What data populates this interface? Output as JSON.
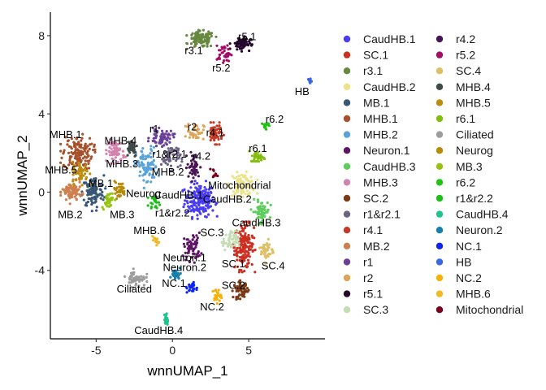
{
  "chart_data": {
    "type": "scatter",
    "xlabel": "wnnUMAP_1",
    "ylabel": "wnnUMAP_2",
    "xlim": [
      -8,
      10
    ],
    "ylim": [
      -7.5,
      9.2
    ],
    "xticks": [
      -5,
      0,
      5
    ],
    "yticks": [
      -4,
      0,
      4,
      8
    ],
    "xtick_labels": [
      "-5",
      "0",
      "5"
    ],
    "ytick_labels": [
      "-4",
      "0",
      "4",
      "8"
    ],
    "grid": false,
    "legend_position": "right",
    "series": [
      {
        "name": "CaudHB.1",
        "color": "#4a3df2",
        "center": [
          1.8,
          -0.4
        ],
        "spread": [
          0.7,
          0.6
        ],
        "count": 200
      },
      {
        "name": "SC.1",
        "color": "#cb2f22",
        "center": [
          4.7,
          -2.8
        ],
        "spread": [
          0.45,
          0.8
        ],
        "count": 160
      },
      {
        "name": "r3.1",
        "color": "#66883f",
        "center": [
          1.9,
          7.8
        ],
        "spread": [
          0.6,
          0.3
        ],
        "count": 110
      },
      {
        "name": "CaudHB.2",
        "color": "#ece286",
        "center": [
          4.6,
          0.4
        ],
        "spread": [
          0.6,
          0.4
        ],
        "count": 90
      },
      {
        "name": "MB.1",
        "color": "#385774",
        "center": [
          -5.2,
          0.0
        ],
        "spread": [
          0.5,
          0.6
        ],
        "count": 110
      },
      {
        "name": "MHB.1",
        "color": "#a7502a",
        "center": [
          -6.2,
          2.0
        ],
        "spread": [
          0.7,
          0.6
        ],
        "count": 140
      },
      {
        "name": "MHB.2",
        "color": "#5aa3d8",
        "center": [
          -1.7,
          1.3
        ],
        "spread": [
          0.5,
          0.7
        ],
        "count": 90
      },
      {
        "name": "Neuron.1",
        "color": "#5d1465",
        "center": [
          1.3,
          -2.8
        ],
        "spread": [
          0.4,
          0.5
        ],
        "count": 60
      },
      {
        "name": "CaudHB.3",
        "color": "#5dcd5c",
        "center": [
          5.8,
          -1.0
        ],
        "spread": [
          0.4,
          0.4
        ],
        "count": 60
      },
      {
        "name": "MHB.3",
        "color": "#d283ae",
        "center": [
          -3.7,
          2.1
        ],
        "spread": [
          0.4,
          0.4
        ],
        "count": 70
      },
      {
        "name": "SC.2",
        "color": "#7a3a16",
        "center": [
          4.5,
          -5.0
        ],
        "spread": [
          0.35,
          0.3
        ],
        "count": 60
      },
      {
        "name": "r1&r2.1",
        "color": "#6b6180",
        "center": [
          -0.1,
          1.8
        ],
        "spread": [
          0.45,
          0.45
        ],
        "count": 60
      },
      {
        "name": "r4.1",
        "color": "#c53a24",
        "center": [
          2.8,
          3.0
        ],
        "spread": [
          0.35,
          0.35
        ],
        "count": 60
      },
      {
        "name": "MB.2",
        "color": "#cd7f4f",
        "center": [
          -6.6,
          0.0
        ],
        "spread": [
          0.45,
          0.4
        ],
        "count": 80
      },
      {
        "name": "r1",
        "color": "#6a3f98",
        "center": [
          -0.7,
          2.8
        ],
        "spread": [
          0.55,
          0.3
        ],
        "count": 60
      },
      {
        "name": "r2",
        "color": "#dca65a",
        "center": [
          1.5,
          3.1
        ],
        "spread": [
          0.4,
          0.3
        ],
        "count": 40
      },
      {
        "name": "r5.1",
        "color": "#24082c",
        "center": [
          4.5,
          7.6
        ],
        "spread": [
          0.45,
          0.25
        ],
        "count": 70
      },
      {
        "name": "SC.3",
        "color": "#c5ddb2",
        "center": [
          3.8,
          -2.5
        ],
        "spread": [
          0.35,
          0.35
        ],
        "count": 50
      },
      {
        "name": "r4.2",
        "color": "#4a1554",
        "center": [
          1.4,
          1.3
        ],
        "spread": [
          0.3,
          0.5
        ],
        "count": 50
      },
      {
        "name": "r5.2",
        "color": "#a30d64",
        "center": [
          3.4,
          7.1
        ],
        "spread": [
          0.3,
          0.3
        ],
        "count": 40
      },
      {
        "name": "SC.4",
        "color": "#dfbf64",
        "center": [
          6.2,
          -3.0
        ],
        "spread": [
          0.3,
          0.4
        ],
        "count": 40
      },
      {
        "name": "MHB.4",
        "color": "#3e4b49",
        "center": [
          -2.7,
          2.3
        ],
        "spread": [
          0.3,
          0.35
        ],
        "count": 40
      },
      {
        "name": "MHB.5",
        "color": "#bc8b0f",
        "center": [
          -6.0,
          1.0
        ],
        "spread": [
          0.4,
          0.4
        ],
        "count": 60
      },
      {
        "name": "r6.1",
        "color": "#83bd0d",
        "center": [
          5.6,
          1.8
        ],
        "spread": [
          0.35,
          0.2
        ],
        "count": 35
      },
      {
        "name": "Ciliated",
        "color": "#9c9c9c",
        "center": [
          -2.4,
          -4.4
        ],
        "spread": [
          0.45,
          0.3
        ],
        "count": 50
      },
      {
        "name": "Neurog",
        "color": "#b98a07",
        "center": [
          -3.5,
          0.1
        ],
        "spread": [
          0.3,
          0.3
        ],
        "count": 35
      },
      {
        "name": "MB.3",
        "color": "#96c212",
        "center": [
          -4.2,
          -0.4
        ],
        "spread": [
          0.3,
          0.3
        ],
        "count": 35
      },
      {
        "name": "r6.2",
        "color": "#22c414",
        "center": [
          6.1,
          3.4
        ],
        "spread": [
          0.15,
          0.2
        ],
        "count": 18
      },
      {
        "name": "r1&r2.2",
        "color": "#1bbf17",
        "center": [
          -1.2,
          -0.5
        ],
        "spread": [
          0.25,
          0.2
        ],
        "count": 20
      },
      {
        "name": "CaudHB.4",
        "color": "#1fc38d",
        "center": [
          -0.4,
          -6.5
        ],
        "spread": [
          0.1,
          0.25
        ],
        "count": 20
      },
      {
        "name": "Neuron.2",
        "color": "#167fab",
        "center": [
          0.2,
          -4.2
        ],
        "spread": [
          0.25,
          0.2
        ],
        "count": 25
      },
      {
        "name": "NC.1",
        "color": "#0d26ef",
        "center": [
          1.3,
          -4.9
        ],
        "spread": [
          0.25,
          0.2
        ],
        "count": 25
      },
      {
        "name": "HB",
        "color": "#3968e0",
        "center": [
          9.0,
          5.7
        ],
        "spread": [
          0.08,
          0.1
        ],
        "count": 12
      },
      {
        "name": "NC.2",
        "color": "#f7b10b",
        "center": [
          2.9,
          -5.3
        ],
        "spread": [
          0.2,
          0.25
        ],
        "count": 25
      },
      {
        "name": "MHB.6",
        "color": "#f0b925",
        "center": [
          -1.1,
          -2.5
        ],
        "spread": [
          0.15,
          0.15
        ],
        "count": 12
      },
      {
        "name": "Mitochondrial",
        "color": "#7b001d",
        "center": [
          2.7,
          0.9
        ],
        "spread": [
          0.2,
          0.2
        ],
        "count": 12
      }
    ],
    "annotations": [
      {
        "text": "CaudHB.1",
        "x": 0.4,
        "y": -0.2
      },
      {
        "text": "SC.1",
        "x": 4.0,
        "y": -3.7
      },
      {
        "text": "r3.1",
        "x": 1.4,
        "y": 7.2
      },
      {
        "text": "CaudHB.2",
        "x": 3.6,
        "y": -0.4
      },
      {
        "text": "MB.1",
        "x": -4.7,
        "y": 0.4
      },
      {
        "text": "MHB.1",
        "x": -7.0,
        "y": 2.9
      },
      {
        "text": "MHB.2",
        "x": -0.3,
        "y": 1.0
      },
      {
        "text": "Neuron.1",
        "x": 0.8,
        "y": -3.4
      },
      {
        "text": "CaudHB.3",
        "x": 5.5,
        "y": -1.6
      },
      {
        "text": "MHB.3",
        "x": -3.3,
        "y": 1.4
      },
      {
        "text": "SC.2",
        "x": 4.0,
        "y": -4.8
      },
      {
        "text": "r1&r2.1",
        "x": -0.2,
        "y": 1.9
      },
      {
        "text": "r4.1",
        "x": 2.8,
        "y": 3.0
      },
      {
        "text": "MB.2",
        "x": -6.7,
        "y": -1.2
      },
      {
        "text": "r1",
        "x": -1.2,
        "y": 3.2
      },
      {
        "text": "r2",
        "x": 1.3,
        "y": 3.3
      },
      {
        "text": "r5.1",
        "x": 4.9,
        "y": 7.9
      },
      {
        "text": "SC.3",
        "x": 2.6,
        "y": -2.1
      },
      {
        "text": "r4.2",
        "x": 1.9,
        "y": 1.8
      },
      {
        "text": "r5.2",
        "x": 3.2,
        "y": 6.3
      },
      {
        "text": "SC.4",
        "x": 6.6,
        "y": -3.8
      },
      {
        "text": "MHB.4",
        "x": -3.4,
        "y": 2.6
      },
      {
        "text": "MHB.5",
        "x": -7.3,
        "y": 1.1
      },
      {
        "text": "r6.1",
        "x": 5.6,
        "y": 2.2
      },
      {
        "text": "Ciliated",
        "x": -2.5,
        "y": -5.0
      },
      {
        "text": "Neurog",
        "x": -1.9,
        "y": -0.1
      },
      {
        "text": "MB.3",
        "x": -3.3,
        "y": -1.2
      },
      {
        "text": "r6.2",
        "x": 6.7,
        "y": 3.7
      },
      {
        "text": "r1&r2.2",
        "x": 0.0,
        "y": -1.1
      },
      {
        "text": "CaudHB.4",
        "x": -0.9,
        "y": -7.1
      },
      {
        "text": "Neuron.2",
        "x": 0.8,
        "y": -3.9
      },
      {
        "text": "NC.1",
        "x": 0.1,
        "y": -4.7
      },
      {
        "text": "HB",
        "x": 8.5,
        "y": 5.1
      },
      {
        "text": "NC.2",
        "x": 2.6,
        "y": -5.9
      },
      {
        "text": "MHB.6",
        "x": -1.5,
        "y": -2.0
      },
      {
        "text": "Mitochondrial",
        "x": 4.4,
        "y": 0.3
      }
    ]
  }
}
